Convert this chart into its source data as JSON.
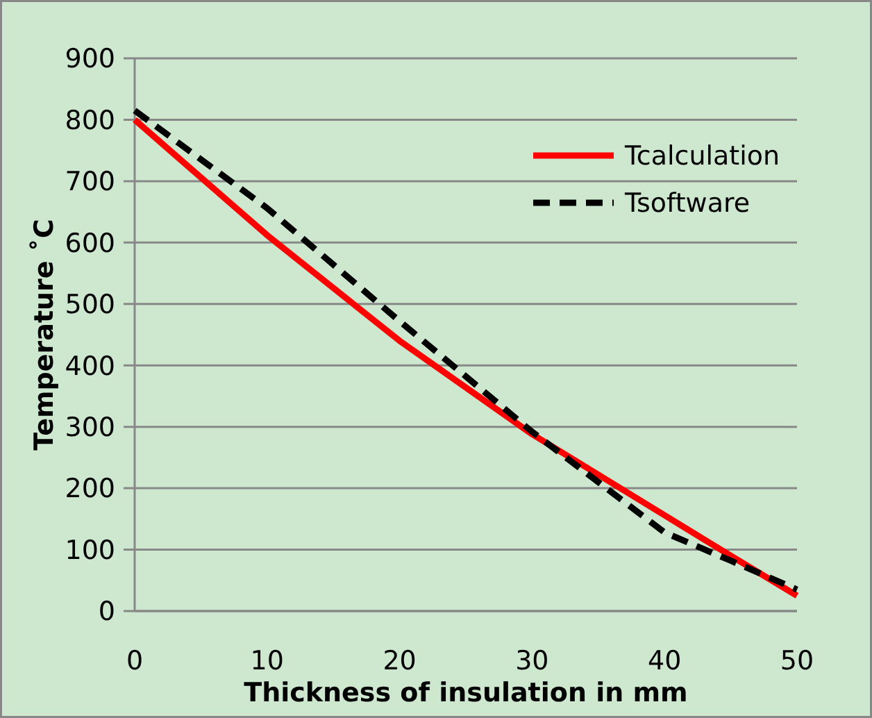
{
  "chart_data": {
    "type": "line",
    "xlabel": "Thickness of insulation in mm",
    "ylabel": "Temperature ˚C",
    "x": [
      0,
      10,
      20,
      30,
      40,
      45,
      50
    ],
    "series": [
      {
        "name": "Tcalculation",
        "color": "#ff0000",
        "line_style": "solid",
        "values": [
          800,
          612,
          440,
          288,
          156,
          90,
          25
        ]
      },
      {
        "name": "Tsoftware",
        "color": "#000000",
        "line_style": "dashed",
        "values": [
          815,
          656,
          472,
          292,
          128,
          82,
          35
        ]
      }
    ],
    "xlim": [
      0,
      50
    ],
    "xticks": [
      0,
      10,
      20,
      30,
      40,
      50
    ],
    "ylim": [
      0,
      900
    ],
    "yticks": [
      0,
      100,
      200,
      300,
      400,
      500,
      600,
      700,
      800,
      900
    ],
    "grid": "y",
    "legend": "top right"
  }
}
